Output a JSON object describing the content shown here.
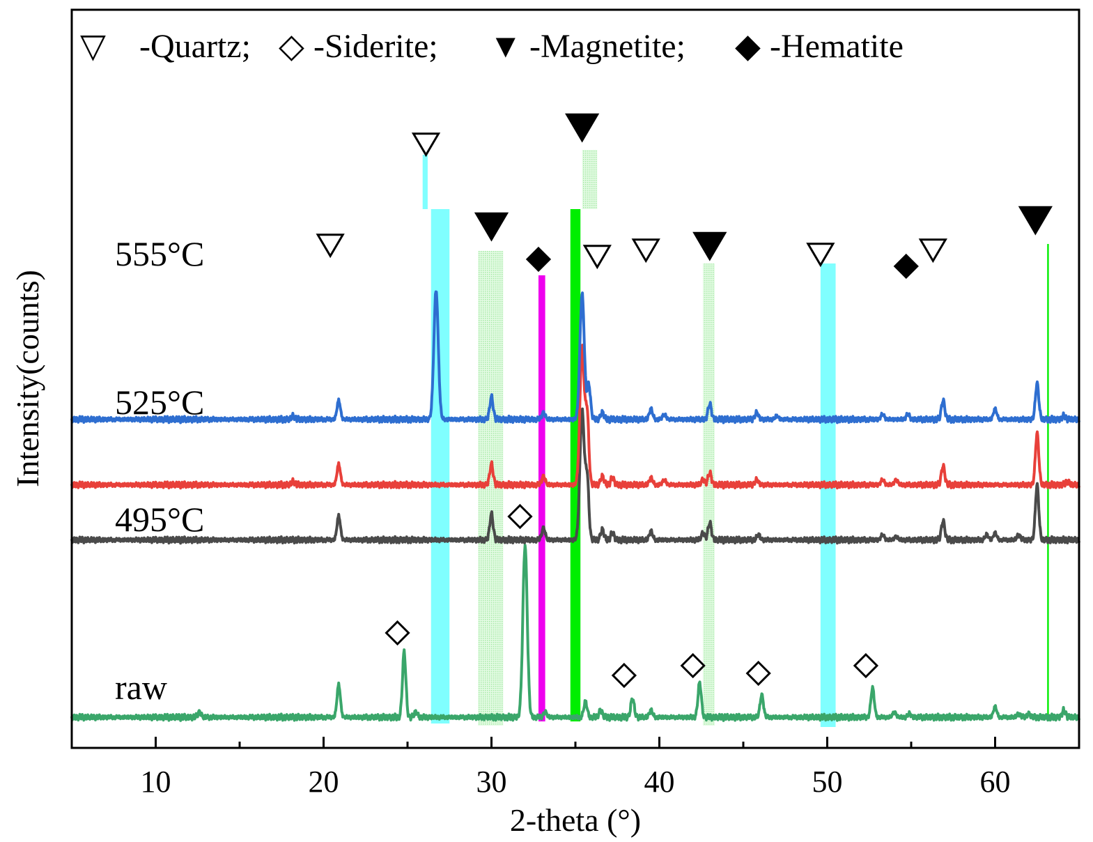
{
  "chart_data": {
    "type": "line",
    "title": "",
    "xlabel": "2-theta (°)",
    "ylabel": "Intensity(counts)",
    "xlim": [
      5,
      65
    ],
    "xticks": [
      10,
      20,
      30,
      40,
      50,
      60
    ],
    "legend": {
      "placement": "top-left",
      "items": [
        {
          "marker": "open-down-triangle",
          "symbol": "▽",
          "label": "-Quartz;"
        },
        {
          "marker": "open-diamond",
          "symbol": "◇",
          "label": "-Siderite;"
        },
        {
          "marker": "filled-down-triangle",
          "symbol": "▼",
          "label": "-Magnetite;"
        },
        {
          "marker": "filled-diamond",
          "symbol": "◆",
          "label": "-Hematite"
        }
      ]
    },
    "y_units": "relative intensity (series stacked with vertical offsets)",
    "series": [
      {
        "name": "raw",
        "label": "raw",
        "color": "#3aa66a",
        "baseline": 0,
        "peaks": [
          [
            12.6,
            3
          ],
          [
            20.9,
            19
          ],
          [
            24.8,
            38
          ],
          [
            25.5,
            3
          ],
          [
            32.0,
            100
          ],
          [
            33.2,
            3
          ],
          [
            35.6,
            9
          ],
          [
            36.5,
            4
          ],
          [
            38.4,
            11
          ],
          [
            39.5,
            4
          ],
          [
            42.4,
            20
          ],
          [
            46.1,
            13
          ],
          [
            52.7,
            17
          ],
          [
            54.0,
            3
          ],
          [
            54.9,
            2
          ],
          [
            60.0,
            6
          ],
          [
            61.4,
            2
          ],
          [
            62.0,
            2
          ],
          [
            64.1,
            4
          ]
        ]
      },
      {
        "name": "495°C",
        "label": "495°C",
        "color": "#4a4a4a",
        "baseline": 103,
        "peaks": [
          [
            20.9,
            14
          ],
          [
            30.0,
            15
          ],
          [
            33.1,
            7
          ],
          [
            35.4,
            75
          ],
          [
            35.7,
            35
          ],
          [
            36.6,
            6
          ],
          [
            37.2,
            4
          ],
          [
            39.5,
            5
          ],
          [
            42.6,
            4
          ],
          [
            43.0,
            10
          ],
          [
            45.9,
            3
          ],
          [
            53.3,
            3
          ],
          [
            54.1,
            2
          ],
          [
            56.9,
            11
          ],
          [
            59.5,
            3
          ],
          [
            60.0,
            4
          ],
          [
            61.4,
            3
          ],
          [
            62.5,
            32
          ]
        ]
      },
      {
        "name": "525°C",
        "label": "525°C",
        "color": "#e8403a",
        "baseline": 135,
        "peaks": [
          [
            18.2,
            2
          ],
          [
            20.9,
            12
          ],
          [
            30.0,
            12
          ],
          [
            33.1,
            5
          ],
          [
            35.4,
            80
          ],
          [
            35.7,
            40
          ],
          [
            36.6,
            5
          ],
          [
            37.2,
            4
          ],
          [
            39.5,
            4
          ],
          [
            40.3,
            3
          ],
          [
            42.6,
            3
          ],
          [
            43.0,
            7
          ],
          [
            45.8,
            3
          ],
          [
            53.3,
            3
          ],
          [
            54.1,
            3
          ],
          [
            56.9,
            11
          ],
          [
            62.5,
            30
          ],
          [
            64.3,
            2
          ]
        ]
      },
      {
        "name": "555°C",
        "label": "555°C",
        "color": "#2e6ed0",
        "baseline": 173,
        "peaks": [
          [
            18.2,
            2
          ],
          [
            20.9,
            11
          ],
          [
            26.7,
            75
          ],
          [
            30.0,
            13
          ],
          [
            33.1,
            4
          ],
          [
            35.4,
            73
          ],
          [
            35.8,
            20
          ],
          [
            36.6,
            4
          ],
          [
            39.5,
            6
          ],
          [
            40.3,
            3
          ],
          [
            43.0,
            9
          ],
          [
            45.8,
            4
          ],
          [
            47.0,
            2
          ],
          [
            53.3,
            3
          ],
          [
            54.8,
            3
          ],
          [
            56.9,
            11
          ],
          [
            60.0,
            6
          ],
          [
            62.5,
            21
          ],
          [
            64.1,
            2
          ]
        ]
      }
    ],
    "annotations": [
      {
        "series": "raw",
        "type": "open-diamond",
        "x": [
          24.4,
          31.7,
          37.9,
          42.0,
          45.9,
          52.3
        ]
      },
      {
        "series": "555°C",
        "type": "open-down-triangle",
        "x": [
          20.4,
          26.1,
          36.3,
          39.2,
          49.6,
          56.3
        ]
      },
      {
        "series": "555°C",
        "type": "filled-down-triangle",
        "x": [
          30.0,
          35.4,
          43.0,
          62.4
        ]
      },
      {
        "series": "555°C",
        "type": "filled-diamond",
        "x": [
          32.8,
          54.7
        ]
      }
    ],
    "highlight_bands": [
      {
        "x": [
          26.4,
          27.5
        ],
        "color": "#80ffff",
        "style": "solid"
      },
      {
        "x": [
          49.6,
          50.5
        ],
        "color": "#80ffff",
        "style": "solid"
      },
      {
        "x": [
          25.9,
          26.2
        ],
        "color": "#80ffff",
        "style": "solid"
      },
      {
        "x": [
          29.2,
          30.7
        ],
        "color": "#c8f5c8",
        "style": "dotted"
      },
      {
        "x": [
          42.6,
          43.3
        ],
        "color": "#c8f5c8",
        "style": "dotted"
      },
      {
        "x": [
          35.4,
          36.3
        ],
        "color": "#c8f5c8",
        "style": "dotted"
      },
      {
        "x": [
          34.7,
          35.3
        ],
        "color": "#00ee00",
        "style": "solid"
      },
      {
        "x": [
          32.8,
          33.2
        ],
        "color": "#ee00ee",
        "style": "solid"
      },
      {
        "x": [
          63.1,
          63.2
        ],
        "color": "#00ee00",
        "style": "solid"
      }
    ]
  }
}
